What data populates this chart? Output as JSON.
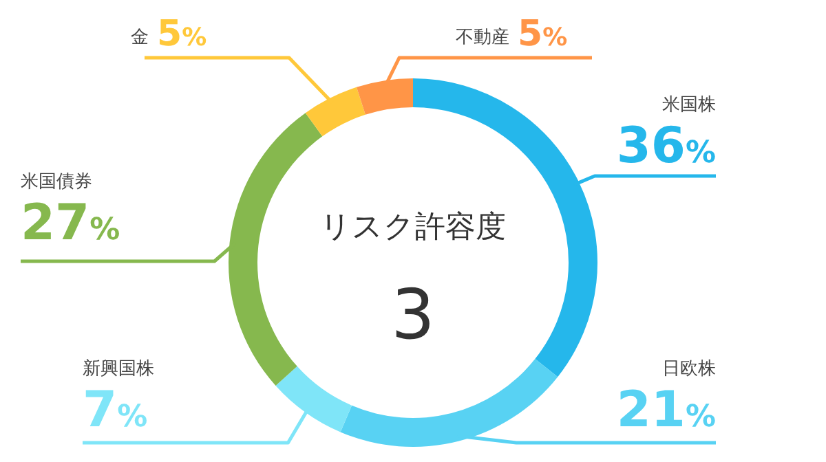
{
  "chart_data": {
    "type": "donut",
    "title": "リスク許容度",
    "annotations": [
      "3"
    ],
    "categories": [
      "米国株",
      "日欧株",
      "新興国株",
      "米国債券",
      "金",
      "不動産"
    ],
    "values": [
      36,
      21,
      7,
      27,
      5,
      5
    ],
    "colors": [
      "#25b7eb",
      "#58d2f3",
      "#7fe5f8",
      "#86b84e",
      "#ffc83a",
      "#ff9547"
    ],
    "value_labels": [
      "36%",
      "21%",
      "7%",
      "27%",
      "5%",
      "5%"
    ]
  }
}
